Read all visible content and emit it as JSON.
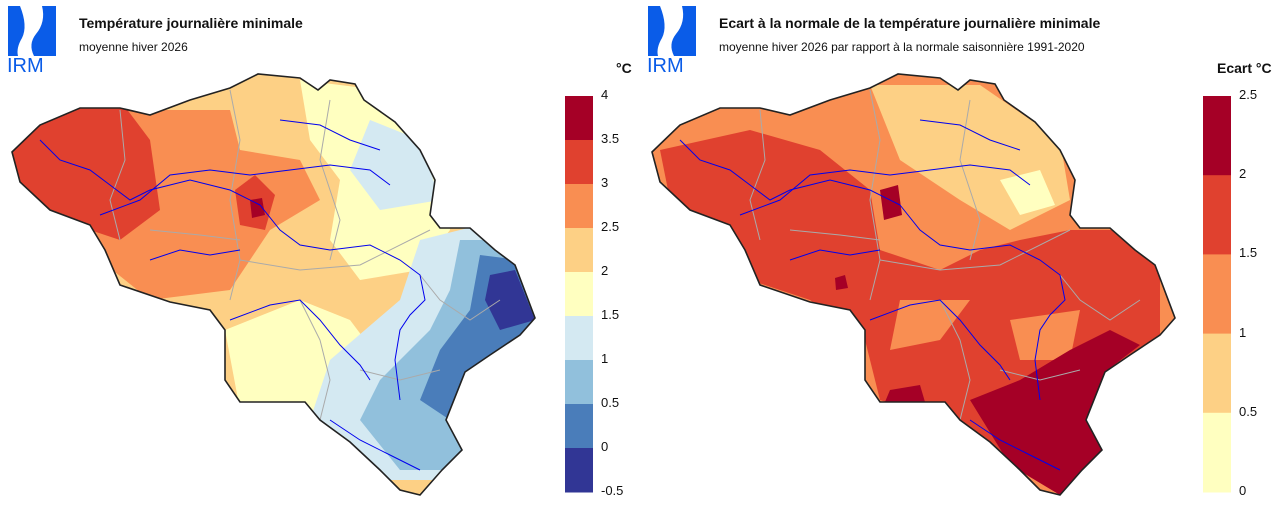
{
  "left": {
    "logo_text": "IRM",
    "title": "Température journalière minimale",
    "subtitle": "moyenne hiver 2026",
    "unit": "°C",
    "legend": {
      "ticks": [
        "4",
        "3.5",
        "3",
        "2.5",
        "2",
        "1.5",
        "1",
        "0.5",
        "0",
        "-0.5"
      ],
      "colors": [
        "#a50026",
        "#e0412f",
        "#f98e52",
        "#fdd085",
        "#ffffc0",
        "#d4e9f2",
        "#91c0dc",
        "#4a7dba",
        "#313695"
      ]
    }
  },
  "right": {
    "logo_text": "IRM",
    "title": "Ecart à la normale de la température journalière minimale",
    "subtitle": "moyenne hiver 2026 par rapport à la normale saisonnière 1991-2020",
    "unit": "Ecart °C",
    "legend": {
      "ticks": [
        "2.5",
        "2",
        "1.5",
        "1",
        "0.5",
        "0"
      ],
      "colors": [
        "#a50026",
        "#e0412f",
        "#f98e52",
        "#fdd085",
        "#ffffc0"
      ]
    }
  },
  "colors": {
    "logo": "#0a5ce8",
    "rivers": "#0000ee",
    "borders": "#aaaaaa",
    "outline": "#222222"
  }
}
